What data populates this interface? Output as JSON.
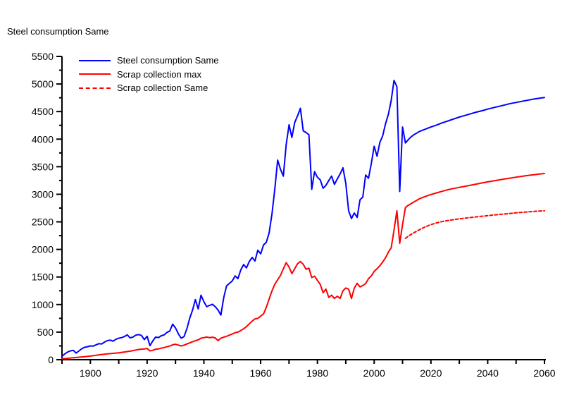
{
  "page_title": "Steel consumption Same",
  "chart_data": {
    "type": "line",
    "title": "Steel consumption Same",
    "xlabel": "",
    "ylabel": "",
    "xlim": [
      1890,
      2060
    ],
    "ylim": [
      0,
      5500
    ],
    "grid": false,
    "background": "#ffffff",
    "axis_color": "#000000",
    "legend_position": "top-left-inside",
    "x_tick_step": 10,
    "y_minor_tick_step": 250,
    "y_major_tick_step": 500,
    "x_tick_labels": [
      1900,
      1920,
      1940,
      1960,
      1980,
      2000,
      2020,
      2040,
      2060
    ],
    "y_tick_labels": [
      0,
      500,
      1000,
      1500,
      2000,
      2500,
      3000,
      3500,
      4000,
      4500,
      5000,
      5500
    ],
    "series": [
      {
        "name": "Steel consumption Same",
        "color": "#0000ff",
        "style": "solid",
        "width": 2,
        "points": [
          [
            1890,
            60
          ],
          [
            1891,
            105
          ],
          [
            1892,
            140
          ],
          [
            1893,
            160
          ],
          [
            1894,
            170
          ],
          [
            1895,
            120
          ],
          [
            1896,
            160
          ],
          [
            1897,
            200
          ],
          [
            1898,
            225
          ],
          [
            1899,
            235
          ],
          [
            1900,
            250
          ],
          [
            1901,
            245
          ],
          [
            1902,
            270
          ],
          [
            1903,
            290
          ],
          [
            1904,
            285
          ],
          [
            1905,
            320
          ],
          [
            1906,
            345
          ],
          [
            1907,
            355
          ],
          [
            1908,
            335
          ],
          [
            1909,
            370
          ],
          [
            1910,
            390
          ],
          [
            1911,
            400
          ],
          [
            1912,
            420
          ],
          [
            1913,
            450
          ],
          [
            1914,
            395
          ],
          [
            1915,
            410
          ],
          [
            1916,
            445
          ],
          [
            1917,
            455
          ],
          [
            1918,
            440
          ],
          [
            1919,
            365
          ],
          [
            1920,
            425
          ],
          [
            1921,
            255
          ],
          [
            1922,
            340
          ],
          [
            1923,
            410
          ],
          [
            1924,
            400
          ],
          [
            1925,
            435
          ],
          [
            1926,
            450
          ],
          [
            1927,
            495
          ],
          [
            1928,
            520
          ],
          [
            1929,
            645
          ],
          [
            1930,
            575
          ],
          [
            1931,
            470
          ],
          [
            1932,
            390
          ],
          [
            1933,
            420
          ],
          [
            1934,
            560
          ],
          [
            1935,
            750
          ],
          [
            1936,
            900
          ],
          [
            1937,
            1090
          ],
          [
            1938,
            920
          ],
          [
            1939,
            1170
          ],
          [
            1940,
            1050
          ],
          [
            1941,
            960
          ],
          [
            1942,
            985
          ],
          [
            1943,
            1005
          ],
          [
            1944,
            960
          ],
          [
            1945,
            900
          ],
          [
            1946,
            810
          ],
          [
            1947,
            1130
          ],
          [
            1948,
            1340
          ],
          [
            1949,
            1385
          ],
          [
            1950,
            1430
          ],
          [
            1951,
            1520
          ],
          [
            1952,
            1470
          ],
          [
            1953,
            1630
          ],
          [
            1954,
            1725
          ],
          [
            1955,
            1665
          ],
          [
            1956,
            1780
          ],
          [
            1957,
            1855
          ],
          [
            1958,
            1790
          ],
          [
            1959,
            1985
          ],
          [
            1960,
            1920
          ],
          [
            1961,
            2080
          ],
          [
            1962,
            2130
          ],
          [
            1963,
            2300
          ],
          [
            1964,
            2650
          ],
          [
            1965,
            3100
          ],
          [
            1966,
            3620
          ],
          [
            1967,
            3450
          ],
          [
            1968,
            3330
          ],
          [
            1969,
            3900
          ],
          [
            1970,
            4260
          ],
          [
            1971,
            4030
          ],
          [
            1972,
            4300
          ],
          [
            1973,
            4420
          ],
          [
            1974,
            4560
          ],
          [
            1975,
            4150
          ],
          [
            1976,
            4120
          ],
          [
            1977,
            4080
          ],
          [
            1978,
            3090
          ],
          [
            1979,
            3410
          ],
          [
            1980,
            3310
          ],
          [
            1981,
            3260
          ],
          [
            1982,
            3110
          ],
          [
            1983,
            3160
          ],
          [
            1984,
            3250
          ],
          [
            1985,
            3330
          ],
          [
            1986,
            3180
          ],
          [
            1987,
            3280
          ],
          [
            1988,
            3370
          ],
          [
            1989,
            3480
          ],
          [
            1990,
            3200
          ],
          [
            1991,
            2700
          ],
          [
            1992,
            2560
          ],
          [
            1993,
            2660
          ],
          [
            1994,
            2580
          ],
          [
            1995,
            2900
          ],
          [
            1996,
            2950
          ],
          [
            1997,
            3350
          ],
          [
            1998,
            3290
          ],
          [
            1999,
            3560
          ],
          [
            2000,
            3870
          ],
          [
            2001,
            3690
          ],
          [
            2002,
            3940
          ],
          [
            2003,
            4060
          ],
          [
            2004,
            4280
          ],
          [
            2005,
            4450
          ],
          [
            2006,
            4700
          ],
          [
            2007,
            5065
          ],
          [
            2008,
            4950
          ],
          [
            2009,
            3050
          ],
          [
            2010,
            4220
          ],
          [
            2011,
            3930
          ],
          [
            2012,
            3990
          ],
          [
            2013,
            4040
          ],
          [
            2014,
            4080
          ],
          [
            2015,
            4110
          ],
          [
            2016,
            4140
          ],
          [
            2018,
            4180
          ],
          [
            2020,
            4220
          ],
          [
            2022,
            4255
          ],
          [
            2024,
            4295
          ],
          [
            2026,
            4330
          ],
          [
            2028,
            4365
          ],
          [
            2030,
            4400
          ],
          [
            2032,
            4430
          ],
          [
            2034,
            4460
          ],
          [
            2036,
            4490
          ],
          [
            2038,
            4515
          ],
          [
            2040,
            4545
          ],
          [
            2042,
            4570
          ],
          [
            2044,
            4595
          ],
          [
            2046,
            4620
          ],
          [
            2048,
            4645
          ],
          [
            2050,
            4665
          ],
          [
            2052,
            4685
          ],
          [
            2054,
            4705
          ],
          [
            2056,
            4725
          ],
          [
            2058,
            4740
          ],
          [
            2060,
            4755
          ]
        ]
      },
      {
        "name": "Scrap collection max",
        "color": "#ff0000",
        "style": "solid",
        "width": 2,
        "points": [
          [
            1890,
            15
          ],
          [
            1892,
            25
          ],
          [
            1894,
            35
          ],
          [
            1896,
            45
          ],
          [
            1898,
            55
          ],
          [
            1900,
            65
          ],
          [
            1902,
            80
          ],
          [
            1904,
            95
          ],
          [
            1906,
            105
          ],
          [
            1908,
            115
          ],
          [
            1910,
            125
          ],
          [
            1912,
            140
          ],
          [
            1914,
            155
          ],
          [
            1915,
            165
          ],
          [
            1916,
            175
          ],
          [
            1917,
            185
          ],
          [
            1918,
            190
          ],
          [
            1919,
            195
          ],
          [
            1920,
            205
          ],
          [
            1921,
            160
          ],
          [
            1922,
            170
          ],
          [
            1923,
            190
          ],
          [
            1924,
            195
          ],
          [
            1925,
            210
          ],
          [
            1926,
            220
          ],
          [
            1927,
            235
          ],
          [
            1928,
            250
          ],
          [
            1929,
            270
          ],
          [
            1930,
            280
          ],
          [
            1931,
            265
          ],
          [
            1932,
            250
          ],
          [
            1933,
            265
          ],
          [
            1934,
            285
          ],
          [
            1935,
            305
          ],
          [
            1936,
            325
          ],
          [
            1937,
            345
          ],
          [
            1938,
            360
          ],
          [
            1939,
            390
          ],
          [
            1940,
            400
          ],
          [
            1941,
            410
          ],
          [
            1942,
            400
          ],
          [
            1943,
            408
          ],
          [
            1944,
            395
          ],
          [
            1945,
            345
          ],
          [
            1946,
            390
          ],
          [
            1947,
            408
          ],
          [
            1948,
            425
          ],
          [
            1949,
            445
          ],
          [
            1950,
            465
          ],
          [
            1951,
            490
          ],
          [
            1952,
            500
          ],
          [
            1953,
            530
          ],
          [
            1954,
            560
          ],
          [
            1955,
            600
          ],
          [
            1956,
            650
          ],
          [
            1957,
            700
          ],
          [
            1958,
            740
          ],
          [
            1959,
            750
          ],
          [
            1960,
            790
          ],
          [
            1961,
            830
          ],
          [
            1962,
            950
          ],
          [
            1963,
            1100
          ],
          [
            1964,
            1250
          ],
          [
            1965,
            1370
          ],
          [
            1966,
            1450
          ],
          [
            1967,
            1530
          ],
          [
            1968,
            1650
          ],
          [
            1969,
            1760
          ],
          [
            1970,
            1680
          ],
          [
            1971,
            1560
          ],
          [
            1972,
            1650
          ],
          [
            1973,
            1740
          ],
          [
            1974,
            1780
          ],
          [
            1975,
            1730
          ],
          [
            1976,
            1640
          ],
          [
            1977,
            1660
          ],
          [
            1978,
            1490
          ],
          [
            1979,
            1515
          ],
          [
            1980,
            1440
          ],
          [
            1981,
            1365
          ],
          [
            1982,
            1215
          ],
          [
            1983,
            1280
          ],
          [
            1984,
            1130
          ],
          [
            1985,
            1170
          ],
          [
            1986,
            1110
          ],
          [
            1987,
            1150
          ],
          [
            1988,
            1110
          ],
          [
            1989,
            1250
          ],
          [
            1990,
            1300
          ],
          [
            1991,
            1280
          ],
          [
            1992,
            1110
          ],
          [
            1993,
            1300
          ],
          [
            1994,
            1385
          ],
          [
            1995,
            1320
          ],
          [
            1996,
            1345
          ],
          [
            1997,
            1380
          ],
          [
            1998,
            1470
          ],
          [
            1999,
            1520
          ],
          [
            2000,
            1600
          ],
          [
            2001,
            1650
          ],
          [
            2002,
            1705
          ],
          [
            2003,
            1770
          ],
          [
            2004,
            1850
          ],
          [
            2005,
            1950
          ],
          [
            2006,
            2030
          ],
          [
            2007,
            2350
          ],
          [
            2008,
            2700
          ],
          [
            2009,
            2110
          ],
          [
            2010,
            2450
          ],
          [
            2011,
            2760
          ],
          [
            2012,
            2800
          ],
          [
            2014,
            2860
          ],
          [
            2016,
            2920
          ],
          [
            2018,
            2960
          ],
          [
            2020,
            2995
          ],
          [
            2022,
            3025
          ],
          [
            2024,
            3055
          ],
          [
            2026,
            3082
          ],
          [
            2028,
            3105
          ],
          [
            2030,
            3125
          ],
          [
            2032,
            3145
          ],
          [
            2034,
            3165
          ],
          [
            2036,
            3185
          ],
          [
            2038,
            3205
          ],
          [
            2040,
            3225
          ],
          [
            2042,
            3243
          ],
          [
            2044,
            3260
          ],
          [
            2046,
            3278
          ],
          [
            2048,
            3294
          ],
          [
            2050,
            3310
          ],
          [
            2052,
            3325
          ],
          [
            2054,
            3340
          ],
          [
            2056,
            3353
          ],
          [
            2058,
            3365
          ],
          [
            2060,
            3377
          ]
        ]
      },
      {
        "name": "Scrap collection Same",
        "color": "#ff0000",
        "style": "dashed",
        "width": 2,
        "points": [
          [
            2011,
            2200
          ],
          [
            2012,
            2240
          ],
          [
            2013,
            2272
          ],
          [
            2014,
            2302
          ],
          [
            2015,
            2330
          ],
          [
            2016,
            2358
          ],
          [
            2017,
            2385
          ],
          [
            2018,
            2408
          ],
          [
            2019,
            2430
          ],
          [
            2020,
            2450
          ],
          [
            2022,
            2482
          ],
          [
            2024,
            2506
          ],
          [
            2026,
            2525
          ],
          [
            2028,
            2540
          ],
          [
            2030,
            2554
          ],
          [
            2032,
            2567
          ],
          [
            2034,
            2579
          ],
          [
            2036,
            2590
          ],
          [
            2038,
            2601
          ],
          [
            2040,
            2612
          ],
          [
            2042,
            2623
          ],
          [
            2044,
            2633
          ],
          [
            2046,
            2643
          ],
          [
            2048,
            2653
          ],
          [
            2050,
            2663
          ],
          [
            2052,
            2672
          ],
          [
            2054,
            2680
          ],
          [
            2056,
            2688
          ],
          [
            2058,
            2695
          ],
          [
            2060,
            2700
          ]
        ]
      }
    ]
  }
}
